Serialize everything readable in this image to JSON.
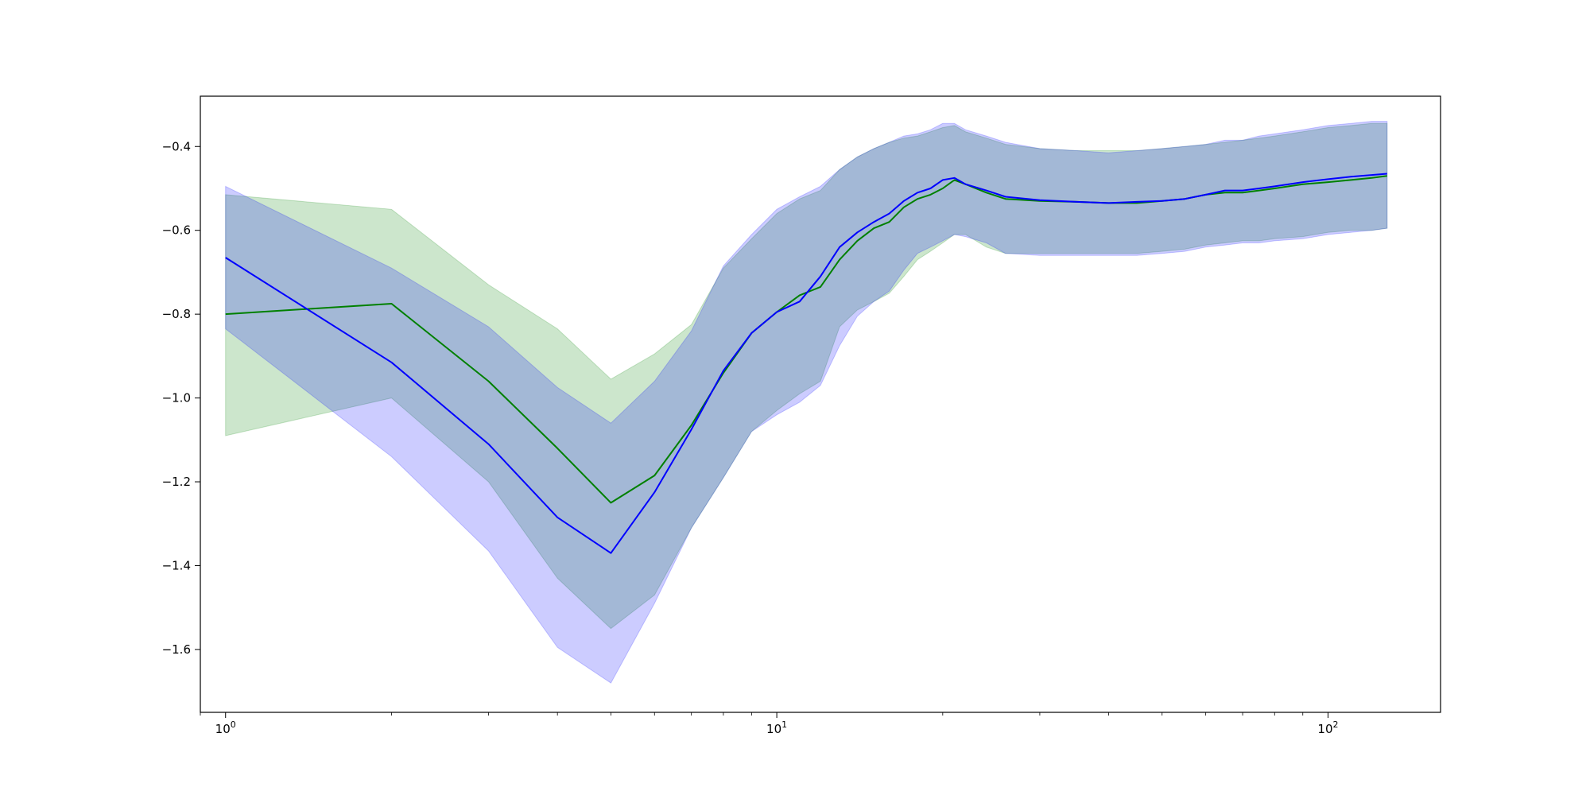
{
  "chart_data": {
    "type": "line",
    "title": "",
    "xlabel": "",
    "ylabel": "",
    "xscale": "log",
    "xlim": [
      0.9,
      160
    ],
    "ylim": [
      -1.75,
      -0.28
    ],
    "grid": false,
    "legend": "none",
    "colors": {
      "blue_line": "#0000ff",
      "blue_band": "#0000ff",
      "green_line": "#008000",
      "green_band": "#008000",
      "frame": "#000000"
    },
    "x_ticks": [
      {
        "value": 1,
        "base": "10",
        "exp": "0"
      },
      {
        "value": 10,
        "base": "10",
        "exp": "1"
      },
      {
        "value": 100,
        "base": "10",
        "exp": "2"
      }
    ],
    "y_ticks": [
      {
        "value": -0.4,
        "label": "−0.4"
      },
      {
        "value": -0.6,
        "label": "−0.6"
      },
      {
        "value": -0.8,
        "label": "−0.8"
      },
      {
        "value": -1.0,
        "label": "−1.0"
      },
      {
        "value": -1.2,
        "label": "−1.2"
      },
      {
        "value": -1.4,
        "label": "−1.4"
      },
      {
        "value": -1.6,
        "label": "−1.6"
      }
    ],
    "series": [
      {
        "color_key": "green",
        "x": [
          1,
          2,
          3,
          4,
          5,
          6,
          7,
          8,
          9,
          10,
          11,
          12,
          13,
          14,
          15,
          16,
          17,
          18,
          19,
          20,
          21,
          22,
          24,
          26,
          30,
          35,
          40,
          45,
          50,
          55,
          60,
          65,
          70,
          75,
          80,
          90,
          100,
          110,
          120,
          128
        ],
        "y": [
          -0.8,
          -0.775,
          -0.96,
          -1.12,
          -1.25,
          -1.185,
          -1.065,
          -0.94,
          -0.845,
          -0.795,
          -0.755,
          -0.735,
          -0.67,
          -0.625,
          -0.595,
          -0.58,
          -0.545,
          -0.525,
          -0.515,
          -0.5,
          -0.48,
          -0.49,
          -0.51,
          -0.525,
          -0.53,
          -0.532,
          -0.535,
          -0.535,
          -0.53,
          -0.525,
          -0.515,
          -0.51,
          -0.51,
          -0.505,
          -0.5,
          -0.49,
          -0.485,
          -0.48,
          -0.475,
          -0.47
        ],
        "lower": [
          -1.09,
          -1.0,
          -1.2,
          -1.43,
          -1.55,
          -1.47,
          -1.31,
          -1.19,
          -1.08,
          -1.03,
          -0.99,
          -0.96,
          -0.83,
          -0.79,
          -0.77,
          -0.75,
          -0.71,
          -0.67,
          -0.65,
          -0.63,
          -0.61,
          -0.61,
          -0.64,
          -0.655,
          -0.655,
          -0.655,
          -0.655,
          -0.655,
          -0.65,
          -0.645,
          -0.635,
          -0.63,
          -0.625,
          -0.625,
          -0.62,
          -0.615,
          -0.605,
          -0.6,
          -0.6,
          -0.595
        ],
        "upper": [
          -0.515,
          -0.55,
          -0.73,
          -0.835,
          -0.955,
          -0.895,
          -0.825,
          -0.69,
          -0.62,
          -0.56,
          -0.525,
          -0.505,
          -0.455,
          -0.425,
          -0.405,
          -0.39,
          -0.38,
          -0.375,
          -0.365,
          -0.355,
          -0.35,
          -0.365,
          -0.38,
          -0.395,
          -0.405,
          -0.41,
          -0.41,
          -0.41,
          -0.405,
          -0.4,
          -0.395,
          -0.39,
          -0.385,
          -0.38,
          -0.375,
          -0.365,
          -0.355,
          -0.35,
          -0.345,
          -0.345
        ]
      },
      {
        "color_key": "blue",
        "x": [
          1,
          2,
          3,
          4,
          5,
          6,
          7,
          8,
          9,
          10,
          11,
          12,
          13,
          14,
          15,
          16,
          17,
          18,
          19,
          20,
          21,
          22,
          24,
          26,
          30,
          35,
          40,
          45,
          50,
          55,
          60,
          65,
          70,
          75,
          80,
          90,
          100,
          110,
          120,
          128
        ],
        "y": [
          -0.665,
          -0.915,
          -1.11,
          -1.285,
          -1.37,
          -1.225,
          -1.075,
          -0.935,
          -0.845,
          -0.795,
          -0.77,
          -0.71,
          -0.64,
          -0.605,
          -0.58,
          -0.56,
          -0.53,
          -0.51,
          -0.5,
          -0.48,
          -0.475,
          -0.49,
          -0.505,
          -0.52,
          -0.528,
          -0.532,
          -0.535,
          -0.532,
          -0.53,
          -0.525,
          -0.515,
          -0.505,
          -0.505,
          -0.5,
          -0.495,
          -0.485,
          -0.478,
          -0.472,
          -0.468,
          -0.465
        ],
        "lower": [
          -0.835,
          -1.14,
          -1.365,
          -1.595,
          -1.68,
          -1.49,
          -1.31,
          -1.19,
          -1.08,
          -1.04,
          -1.01,
          -0.97,
          -0.875,
          -0.805,
          -0.77,
          -0.745,
          -0.695,
          -0.655,
          -0.64,
          -0.625,
          -0.61,
          -0.615,
          -0.63,
          -0.655,
          -0.66,
          -0.66,
          -0.66,
          -0.66,
          -0.655,
          -0.65,
          -0.64,
          -0.635,
          -0.63,
          -0.63,
          -0.625,
          -0.62,
          -0.61,
          -0.605,
          -0.6,
          -0.595
        ],
        "upper": [
          -0.495,
          -0.69,
          -0.83,
          -0.975,
          -1.06,
          -0.96,
          -0.84,
          -0.685,
          -0.61,
          -0.55,
          -0.52,
          -0.495,
          -0.455,
          -0.425,
          -0.405,
          -0.39,
          -0.375,
          -0.37,
          -0.36,
          -0.345,
          -0.345,
          -0.36,
          -0.375,
          -0.39,
          -0.405,
          -0.41,
          -0.415,
          -0.41,
          -0.405,
          -0.4,
          -0.395,
          -0.385,
          -0.385,
          -0.375,
          -0.37,
          -0.36,
          -0.35,
          -0.345,
          -0.34,
          -0.34
        ]
      }
    ]
  }
}
